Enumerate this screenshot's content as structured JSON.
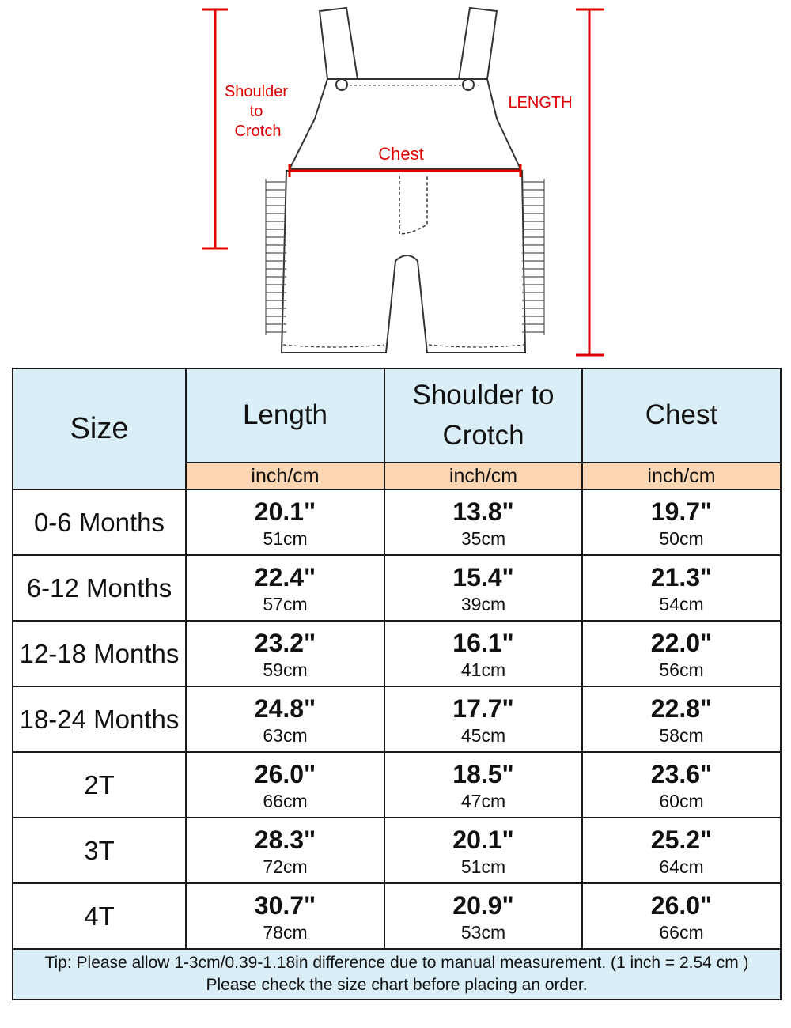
{
  "diagram": {
    "labels": {
      "shoulder_line1": "Shoulder",
      "shoulder_line2": "to",
      "shoulder_line3": "Crotch",
      "length": "LENGTH",
      "chest": "Chest"
    },
    "accent_color": "#e00000",
    "icon": "overalls-sketch"
  },
  "table": {
    "size_header": "Size",
    "columns": [
      {
        "label": "Length",
        "unit": "inch/cm"
      },
      {
        "label": "Shoulder to Crotch",
        "unit": "inch/cm"
      },
      {
        "label": "Chest",
        "unit": "inch/cm"
      }
    ],
    "rows": [
      {
        "size": "0-6 Months",
        "length_in": "20.1\"",
        "length_cm": "51cm",
        "shoulder_in": "13.8\"",
        "shoulder_cm": "35cm",
        "chest_in": "19.7\"",
        "chest_cm": "50cm"
      },
      {
        "size": "6-12 Months",
        "length_in": "22.4\"",
        "length_cm": "57cm",
        "shoulder_in": "15.4\"",
        "shoulder_cm": "39cm",
        "chest_in": "21.3\"",
        "chest_cm": "54cm"
      },
      {
        "size": "12-18 Months",
        "length_in": "23.2\"",
        "length_cm": "59cm",
        "shoulder_in": "16.1\"",
        "shoulder_cm": "41cm",
        "chest_in": "22.0\"",
        "chest_cm": "56cm"
      },
      {
        "size": "18-24 Months",
        "length_in": "24.8\"",
        "length_cm": "63cm",
        "shoulder_in": "17.7\"",
        "shoulder_cm": "45cm",
        "chest_in": "22.8\"",
        "chest_cm": "58cm"
      },
      {
        "size": "2T",
        "length_in": "26.0\"",
        "length_cm": "66cm",
        "shoulder_in": "18.5\"",
        "shoulder_cm": "47cm",
        "chest_in": "23.6\"",
        "chest_cm": "60cm"
      },
      {
        "size": "3T",
        "length_in": "28.3\"",
        "length_cm": "72cm",
        "shoulder_in": "20.1\"",
        "shoulder_cm": "51cm",
        "chest_in": "25.2\"",
        "chest_cm": "64cm"
      },
      {
        "size": "4T",
        "length_in": "30.7\"",
        "length_cm": "78cm",
        "shoulder_in": "20.9\"",
        "shoulder_cm": "53cm",
        "chest_in": "26.0\"",
        "chest_cm": "66cm"
      }
    ],
    "tip_line1": "Tip: Please allow 1-3cm/0.39-1.18in difference due to manual measurement. (1 inch = 2.54 cm )",
    "tip_line2": "Please check the size chart before placing an order.",
    "header_bg": "#daeef7",
    "unit_bg": "#fcd5b3"
  }
}
